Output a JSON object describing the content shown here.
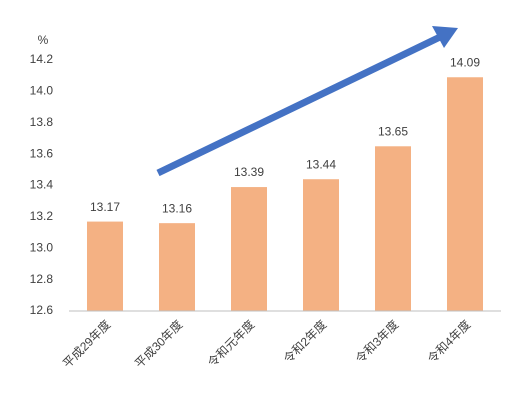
{
  "chart_data": {
    "type": "bar",
    "y_unit": "%",
    "categories": [
      "平成29年度",
      "平成30年度",
      "令和元年度",
      "令和2年度",
      "令和3年度",
      "令和4年度"
    ],
    "values": [
      13.17,
      13.16,
      13.39,
      13.44,
      13.65,
      14.09
    ],
    "color": "#f4b183",
    "ylim": [
      12.6,
      14.2
    ],
    "yticks": [
      12.6,
      12.8,
      {
        "value": 13,
        "label": "13.0"
      },
      13.2,
      13.4,
      13.6,
      13.8,
      {
        "value": 14,
        "label": "14.0"
      },
      14.2
    ],
    "grid": false
  }
}
